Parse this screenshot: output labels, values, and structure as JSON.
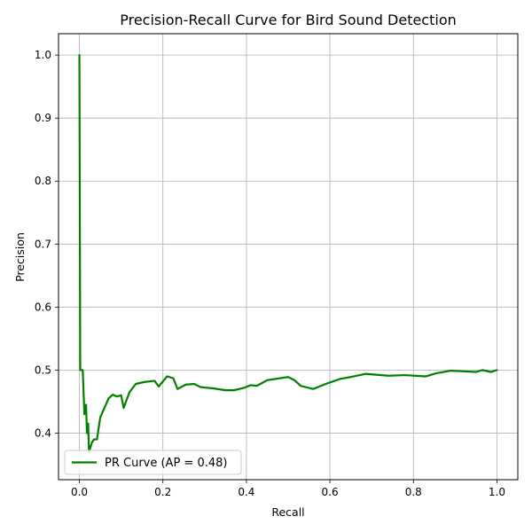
{
  "chart_data": {
    "type": "line",
    "title": "Precision-Recall Curve for Bird Sound Detection",
    "xlabel": "Recall",
    "ylabel": "Precision",
    "xlim": [
      -0.05,
      1.05
    ],
    "ylim": [
      0.326,
      1.034
    ],
    "xticks": [
      0.0,
      0.2,
      0.4,
      0.6,
      0.8,
      1.0
    ],
    "xtick_labels": [
      "0.0",
      "0.2",
      "0.4",
      "0.6",
      "0.8",
      "1.0"
    ],
    "yticks": [
      0.4,
      0.5,
      0.6,
      0.7,
      0.8,
      0.9,
      1.0
    ],
    "ytick_labels": [
      "0.4",
      "0.5",
      "0.6",
      "0.7",
      "0.8",
      "0.9",
      "1.0"
    ],
    "grid": true,
    "legend_position": "lower-left",
    "series": [
      {
        "name": "PR Curve (AP = 0.48)",
        "color": "#008000",
        "points": [
          [
            0.0,
            1.0
          ],
          [
            0.002,
            0.5
          ],
          [
            0.008,
            0.5
          ],
          [
            0.012,
            0.43
          ],
          [
            0.016,
            0.445
          ],
          [
            0.018,
            0.4
          ],
          [
            0.021,
            0.415
          ],
          [
            0.023,
            0.37
          ],
          [
            0.03,
            0.385
          ],
          [
            0.035,
            0.39
          ],
          [
            0.042,
            0.39
          ],
          [
            0.05,
            0.425
          ],
          [
            0.07,
            0.455
          ],
          [
            0.08,
            0.461
          ],
          [
            0.09,
            0.458
          ],
          [
            0.1,
            0.46
          ],
          [
            0.106,
            0.44
          ],
          [
            0.12,
            0.465
          ],
          [
            0.135,
            0.478
          ],
          [
            0.155,
            0.481
          ],
          [
            0.18,
            0.483
          ],
          [
            0.19,
            0.474
          ],
          [
            0.21,
            0.49
          ],
          [
            0.225,
            0.487
          ],
          [
            0.235,
            0.47
          ],
          [
            0.255,
            0.477
          ],
          [
            0.275,
            0.478
          ],
          [
            0.29,
            0.473
          ],
          [
            0.32,
            0.471
          ],
          [
            0.35,
            0.468
          ],
          [
            0.37,
            0.468
          ],
          [
            0.395,
            0.472
          ],
          [
            0.41,
            0.476
          ],
          [
            0.425,
            0.475
          ],
          [
            0.45,
            0.484
          ],
          [
            0.5,
            0.489
          ],
          [
            0.515,
            0.484
          ],
          [
            0.53,
            0.475
          ],
          [
            0.56,
            0.47
          ],
          [
            0.59,
            0.478
          ],
          [
            0.625,
            0.486
          ],
          [
            0.65,
            0.489
          ],
          [
            0.685,
            0.494
          ],
          [
            0.74,
            0.491
          ],
          [
            0.78,
            0.492
          ],
          [
            0.83,
            0.49
          ],
          [
            0.855,
            0.495
          ],
          [
            0.89,
            0.499
          ],
          [
            0.92,
            0.498
          ],
          [
            0.95,
            0.497
          ],
          [
            0.965,
            0.5
          ],
          [
            0.985,
            0.497
          ],
          [
            1.0,
            0.5
          ]
        ]
      }
    ]
  }
}
